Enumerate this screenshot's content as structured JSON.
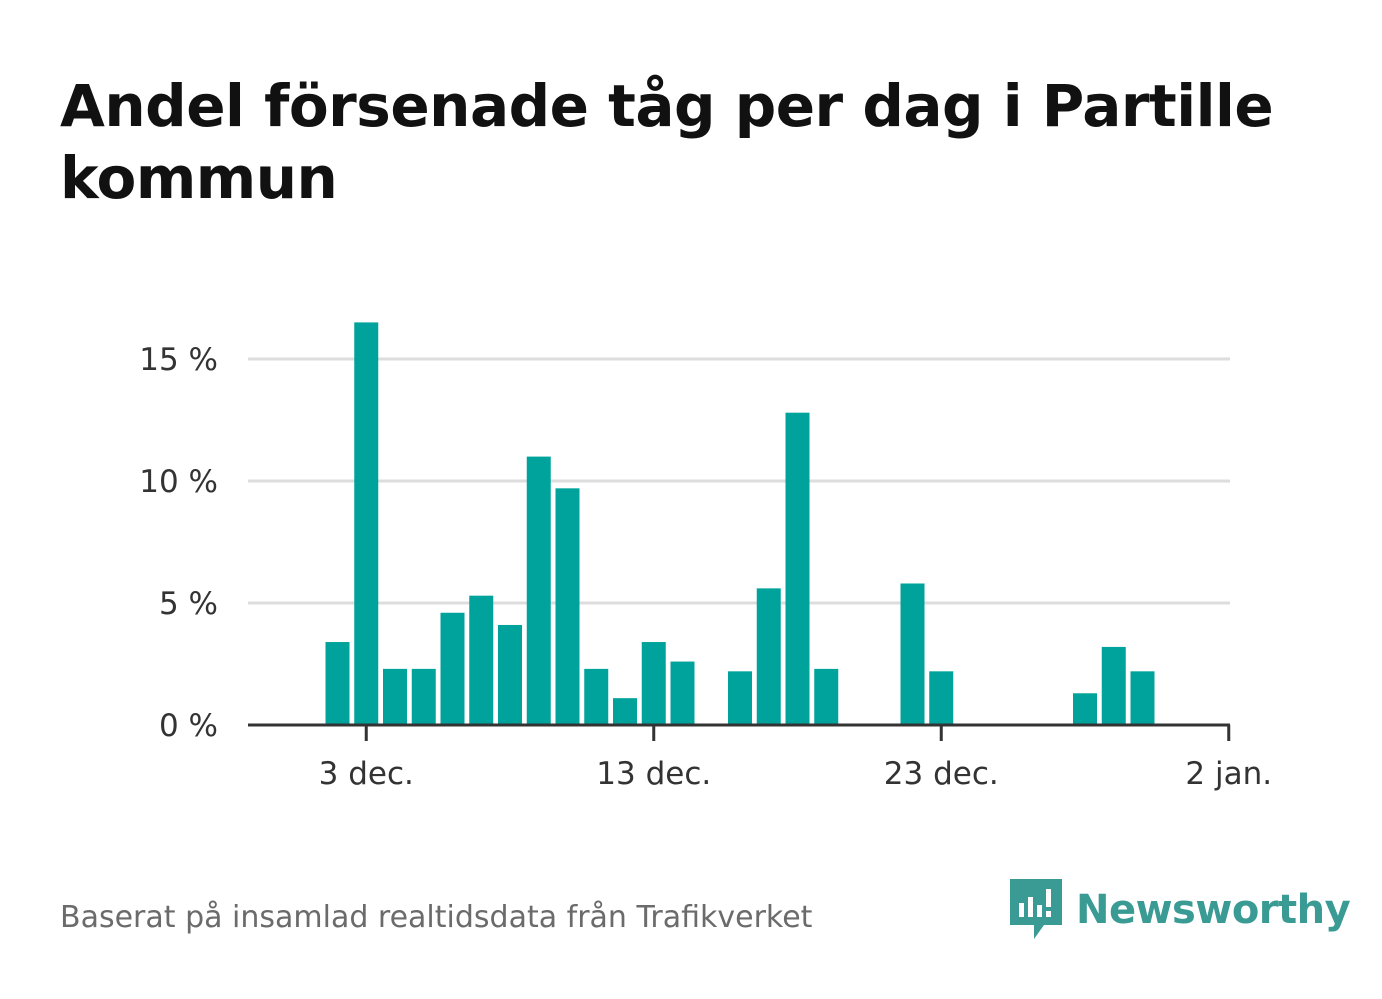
{
  "title": "Andel försenade tåg per dag i Partille kommun",
  "source": "Baserat på insamlad realtidsdata från Trafikverket",
  "brand": {
    "name": "Newsworthy",
    "icon": "newsworthy-logo-icon",
    "color": "#3a9a94"
  },
  "chart_data": {
    "type": "bar",
    "x": [
      "2 dec.",
      "3 dec.",
      "4 dec.",
      "5 dec.",
      "6 dec.",
      "7 dec.",
      "8 dec.",
      "9 dec.",
      "10 dec.",
      "11 dec.",
      "12 dec.",
      "13 dec.",
      "14 dec.",
      "15 dec.",
      "16 dec.",
      "17 dec.",
      "18 dec.",
      "19 dec.",
      "20 dec.",
      "21 dec.",
      "22 dec.",
      "23 dec.",
      "24 dec.",
      "25 dec.",
      "26 dec.",
      "27 dec.",
      "28 dec.",
      "29 dec.",
      "30 dec.",
      "31 dec."
    ],
    "values": [
      3.4,
      16.5,
      2.3,
      2.3,
      4.6,
      5.3,
      4.1,
      11.0,
      9.7,
      2.3,
      1.1,
      3.4,
      2.6,
      null,
      2.2,
      5.6,
      12.8,
      2.3,
      null,
      null,
      5.8,
      2.2,
      null,
      null,
      null,
      null,
      1.3,
      3.2,
      2.2,
      null
    ],
    "xticks": [
      "3 dec.",
      "13 dec.",
      "23 dec.",
      "2 jan."
    ],
    "yticks": [
      "0 %",
      "5 %",
      "10 %",
      "15 %"
    ],
    "ytick_values": [
      0,
      5,
      10,
      15
    ],
    "ylim": [
      0,
      16.5
    ],
    "grid": true,
    "color": "#00a39b",
    "xlabel": "",
    "ylabel": ""
  }
}
